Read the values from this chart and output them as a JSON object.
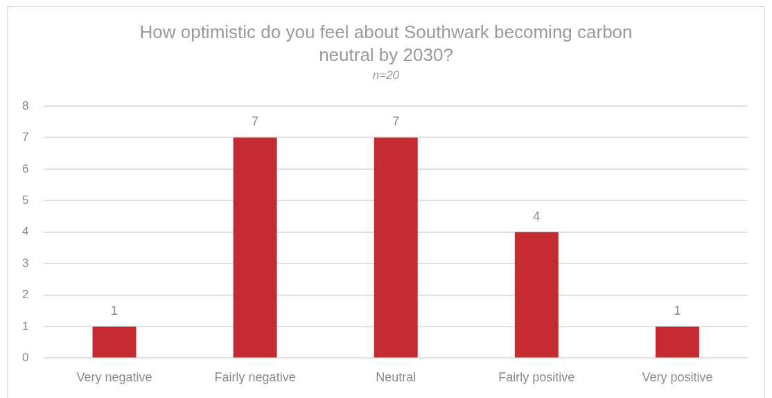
{
  "chart_data": {
    "type": "bar",
    "title": "How optimistic do you feel about Southwark becoming carbon neutral by 2030?",
    "subtitle": "n=20",
    "categories": [
      "Very negative",
      "Fairly negative",
      "Neutral",
      "Fairly positive",
      "Very positive"
    ],
    "values": [
      1,
      7,
      7,
      4,
      1
    ],
    "color": "#c32b30",
    "ylim": [
      0,
      8
    ],
    "yticks": [
      0,
      1,
      2,
      3,
      4,
      5,
      6,
      7,
      8
    ],
    "grid": "y",
    "data_labels": true
  }
}
